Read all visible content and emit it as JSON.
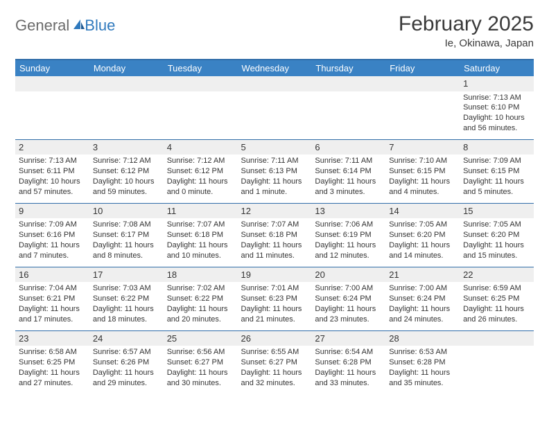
{
  "brand": {
    "general": "General",
    "blue": "Blue"
  },
  "title": "February 2025",
  "location": "Ie, Okinawa, Japan",
  "colors": {
    "header_bg": "#3a82c4",
    "header_text": "#ffffff",
    "rule": "#2f6ca8",
    "shade": "#efefef",
    "text": "#333333",
    "logo_gray": "#6b6b6b",
    "logo_blue": "#2f79bd"
  },
  "weekdays": [
    "Sunday",
    "Monday",
    "Tuesday",
    "Wednesday",
    "Thursday",
    "Friday",
    "Saturday"
  ],
  "weeks": [
    [
      null,
      null,
      null,
      null,
      null,
      null,
      {
        "n": "1",
        "sr": "Sunrise: 7:13 AM",
        "ss": "Sunset: 6:10 PM",
        "d1": "Daylight: 10 hours",
        "d2": "and 56 minutes."
      }
    ],
    [
      {
        "n": "2",
        "sr": "Sunrise: 7:13 AM",
        "ss": "Sunset: 6:11 PM",
        "d1": "Daylight: 10 hours",
        "d2": "and 57 minutes."
      },
      {
        "n": "3",
        "sr": "Sunrise: 7:12 AM",
        "ss": "Sunset: 6:12 PM",
        "d1": "Daylight: 10 hours",
        "d2": "and 59 minutes."
      },
      {
        "n": "4",
        "sr": "Sunrise: 7:12 AM",
        "ss": "Sunset: 6:12 PM",
        "d1": "Daylight: 11 hours",
        "d2": "and 0 minute."
      },
      {
        "n": "5",
        "sr": "Sunrise: 7:11 AM",
        "ss": "Sunset: 6:13 PM",
        "d1": "Daylight: 11 hours",
        "d2": "and 1 minute."
      },
      {
        "n": "6",
        "sr": "Sunrise: 7:11 AM",
        "ss": "Sunset: 6:14 PM",
        "d1": "Daylight: 11 hours",
        "d2": "and 3 minutes."
      },
      {
        "n": "7",
        "sr": "Sunrise: 7:10 AM",
        "ss": "Sunset: 6:15 PM",
        "d1": "Daylight: 11 hours",
        "d2": "and 4 minutes."
      },
      {
        "n": "8",
        "sr": "Sunrise: 7:09 AM",
        "ss": "Sunset: 6:15 PM",
        "d1": "Daylight: 11 hours",
        "d2": "and 5 minutes."
      }
    ],
    [
      {
        "n": "9",
        "sr": "Sunrise: 7:09 AM",
        "ss": "Sunset: 6:16 PM",
        "d1": "Daylight: 11 hours",
        "d2": "and 7 minutes."
      },
      {
        "n": "10",
        "sr": "Sunrise: 7:08 AM",
        "ss": "Sunset: 6:17 PM",
        "d1": "Daylight: 11 hours",
        "d2": "and 8 minutes."
      },
      {
        "n": "11",
        "sr": "Sunrise: 7:07 AM",
        "ss": "Sunset: 6:18 PM",
        "d1": "Daylight: 11 hours",
        "d2": "and 10 minutes."
      },
      {
        "n": "12",
        "sr": "Sunrise: 7:07 AM",
        "ss": "Sunset: 6:18 PM",
        "d1": "Daylight: 11 hours",
        "d2": "and 11 minutes."
      },
      {
        "n": "13",
        "sr": "Sunrise: 7:06 AM",
        "ss": "Sunset: 6:19 PM",
        "d1": "Daylight: 11 hours",
        "d2": "and 12 minutes."
      },
      {
        "n": "14",
        "sr": "Sunrise: 7:05 AM",
        "ss": "Sunset: 6:20 PM",
        "d1": "Daylight: 11 hours",
        "d2": "and 14 minutes."
      },
      {
        "n": "15",
        "sr": "Sunrise: 7:05 AM",
        "ss": "Sunset: 6:20 PM",
        "d1": "Daylight: 11 hours",
        "d2": "and 15 minutes."
      }
    ],
    [
      {
        "n": "16",
        "sr": "Sunrise: 7:04 AM",
        "ss": "Sunset: 6:21 PM",
        "d1": "Daylight: 11 hours",
        "d2": "and 17 minutes."
      },
      {
        "n": "17",
        "sr": "Sunrise: 7:03 AM",
        "ss": "Sunset: 6:22 PM",
        "d1": "Daylight: 11 hours",
        "d2": "and 18 minutes."
      },
      {
        "n": "18",
        "sr": "Sunrise: 7:02 AM",
        "ss": "Sunset: 6:22 PM",
        "d1": "Daylight: 11 hours",
        "d2": "and 20 minutes."
      },
      {
        "n": "19",
        "sr": "Sunrise: 7:01 AM",
        "ss": "Sunset: 6:23 PM",
        "d1": "Daylight: 11 hours",
        "d2": "and 21 minutes."
      },
      {
        "n": "20",
        "sr": "Sunrise: 7:00 AM",
        "ss": "Sunset: 6:24 PM",
        "d1": "Daylight: 11 hours",
        "d2": "and 23 minutes."
      },
      {
        "n": "21",
        "sr": "Sunrise: 7:00 AM",
        "ss": "Sunset: 6:24 PM",
        "d1": "Daylight: 11 hours",
        "d2": "and 24 minutes."
      },
      {
        "n": "22",
        "sr": "Sunrise: 6:59 AM",
        "ss": "Sunset: 6:25 PM",
        "d1": "Daylight: 11 hours",
        "d2": "and 26 minutes."
      }
    ],
    [
      {
        "n": "23",
        "sr": "Sunrise: 6:58 AM",
        "ss": "Sunset: 6:25 PM",
        "d1": "Daylight: 11 hours",
        "d2": "and 27 minutes."
      },
      {
        "n": "24",
        "sr": "Sunrise: 6:57 AM",
        "ss": "Sunset: 6:26 PM",
        "d1": "Daylight: 11 hours",
        "d2": "and 29 minutes."
      },
      {
        "n": "25",
        "sr": "Sunrise: 6:56 AM",
        "ss": "Sunset: 6:27 PM",
        "d1": "Daylight: 11 hours",
        "d2": "and 30 minutes."
      },
      {
        "n": "26",
        "sr": "Sunrise: 6:55 AM",
        "ss": "Sunset: 6:27 PM",
        "d1": "Daylight: 11 hours",
        "d2": "and 32 minutes."
      },
      {
        "n": "27",
        "sr": "Sunrise: 6:54 AM",
        "ss": "Sunset: 6:28 PM",
        "d1": "Daylight: 11 hours",
        "d2": "and 33 minutes."
      },
      {
        "n": "28",
        "sr": "Sunrise: 6:53 AM",
        "ss": "Sunset: 6:28 PM",
        "d1": "Daylight: 11 hours",
        "d2": "and 35 minutes."
      },
      null
    ]
  ]
}
